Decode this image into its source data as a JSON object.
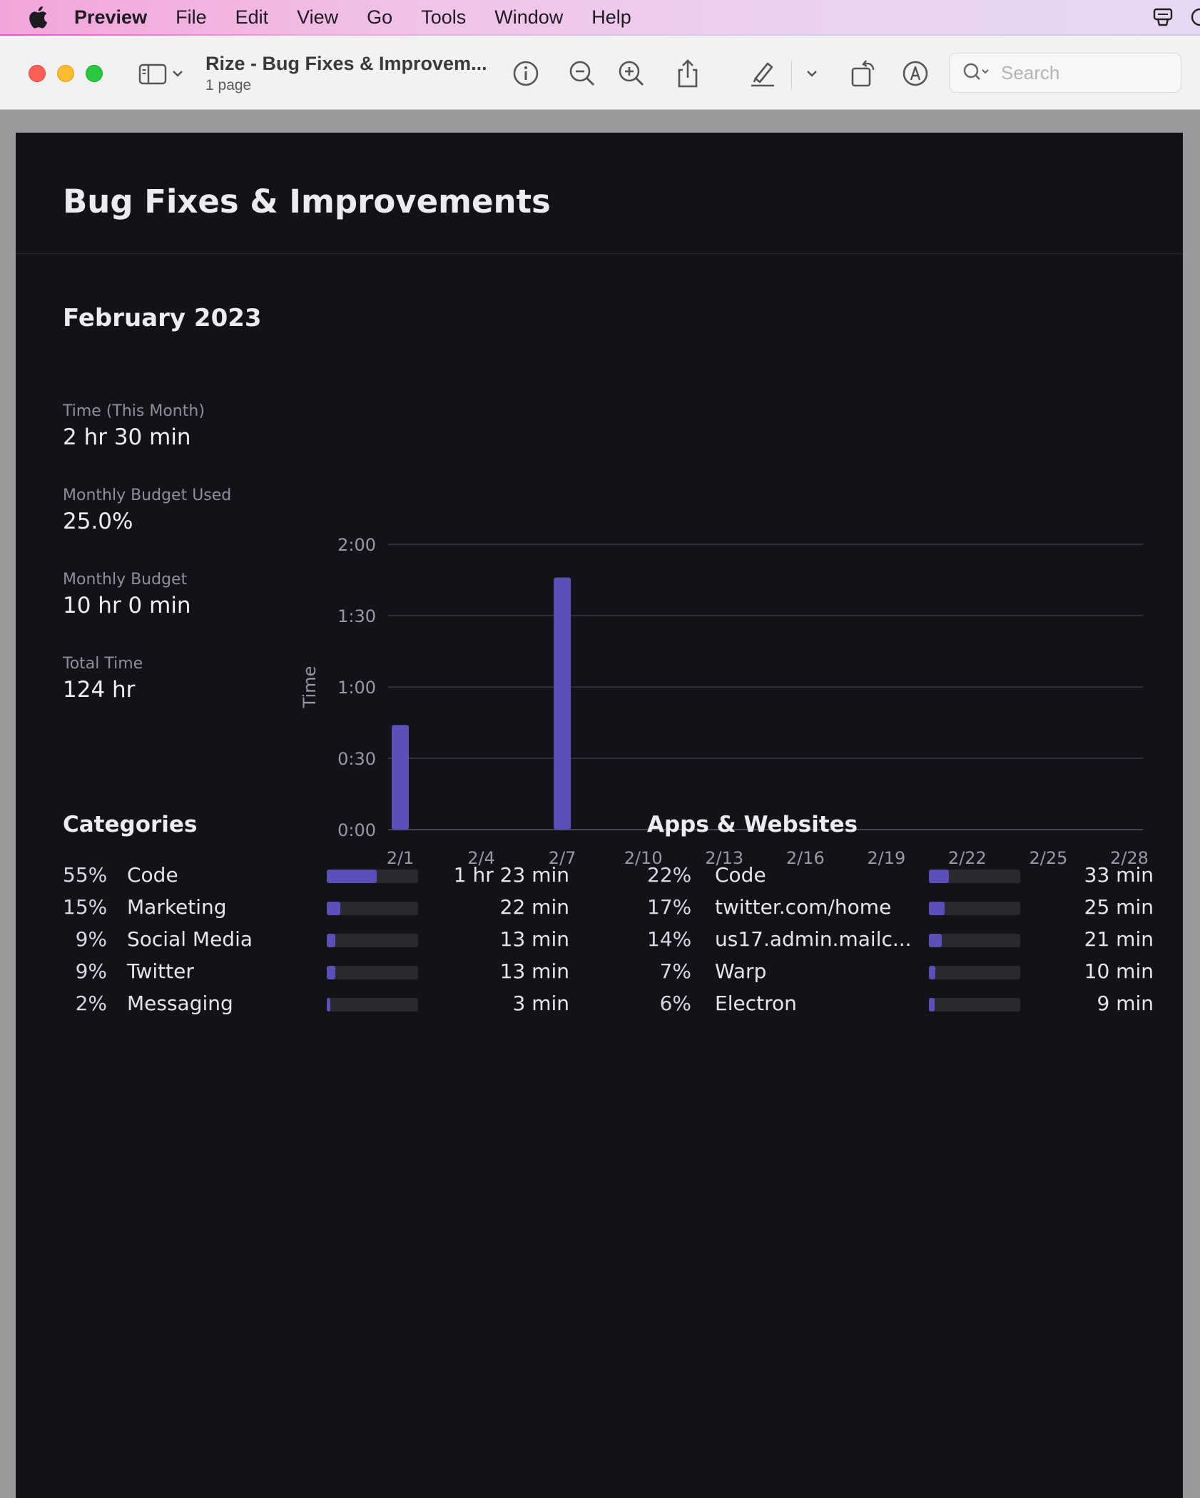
{
  "menubar": {
    "app_name": "Preview",
    "items": [
      "File",
      "Edit",
      "View",
      "Go",
      "Tools",
      "Window",
      "Help"
    ]
  },
  "toolbar": {
    "doc_title": "Rize - Bug Fixes & Improvem...",
    "doc_subtitle": "1 page",
    "search_placeholder": "Search",
    "icons": [
      "sidebar-icon",
      "chevron-down-icon",
      "info-icon",
      "zoom-out-icon",
      "zoom-in-icon",
      "share-icon",
      "highlighter-icon",
      "chevron-down-icon",
      "rotate-icon",
      "markup-icon",
      "search-icon"
    ]
  },
  "report": {
    "title": "Bug Fixes & Improvements",
    "month": "February 2023",
    "stats": [
      {
        "label": "Time (This Month)",
        "value": "2 hr 30 min"
      },
      {
        "label": "Monthly Budget Used",
        "value": "25.0%"
      },
      {
        "label": "Monthly Budget",
        "value": "10 hr 0 min"
      },
      {
        "label": "Total Time",
        "value": "124 hr"
      }
    ],
    "categories_title": "Categories",
    "categories": [
      {
        "pct": "55%",
        "name": "Code",
        "fraction": 0.55,
        "time": "1 hr 23 min"
      },
      {
        "pct": "15%",
        "name": "Marketing",
        "fraction": 0.15,
        "time": "22 min"
      },
      {
        "pct": "9%",
        "name": "Social Media",
        "fraction": 0.09,
        "time": "13 min"
      },
      {
        "pct": "9%",
        "name": "Twitter",
        "fraction": 0.09,
        "time": "13 min"
      },
      {
        "pct": "2%",
        "name": "Messaging",
        "fraction": 0.02,
        "time": "3 min"
      }
    ],
    "apps_title": "Apps & Websites",
    "apps": [
      {
        "pct": "22%",
        "name": "Code",
        "fraction": 0.22,
        "time": "33 min"
      },
      {
        "pct": "17%",
        "name": "twitter.com/home",
        "fraction": 0.17,
        "time": "25 min"
      },
      {
        "pct": "14%",
        "name": "us17.admin.mailc...",
        "fraction": 0.14,
        "time": "21 min"
      },
      {
        "pct": "7%",
        "name": "Warp",
        "fraction": 0.07,
        "time": "10 min"
      },
      {
        "pct": "6%",
        "name": "Electron",
        "fraction": 0.06,
        "time": "9 min"
      }
    ]
  },
  "colors": {
    "accent": "#5b4fb8",
    "page_bg": "#131218",
    "bar_track": "#2a2930"
  },
  "chart_data": {
    "type": "bar",
    "title": "",
    "xlabel": "",
    "ylabel": "Time",
    "y_unit": "minutes",
    "ylim": [
      0,
      120
    ],
    "y_ticks": [
      0,
      30,
      60,
      90,
      120
    ],
    "y_tick_labels": [
      "0:00",
      "0:30",
      "1:00",
      "1:30",
      "2:00"
    ],
    "x_tick_labels": [
      "2/1",
      "2/4",
      "2/7",
      "2/10",
      "2/13",
      "2/16",
      "2/19",
      "2/22",
      "2/25",
      "2/28"
    ],
    "x_tick_days": [
      1,
      4,
      7,
      10,
      13,
      16,
      19,
      22,
      25,
      28
    ],
    "days": [
      1,
      7
    ],
    "values": [
      44,
      106
    ],
    "grid": true,
    "color": "#5b4fb8"
  }
}
